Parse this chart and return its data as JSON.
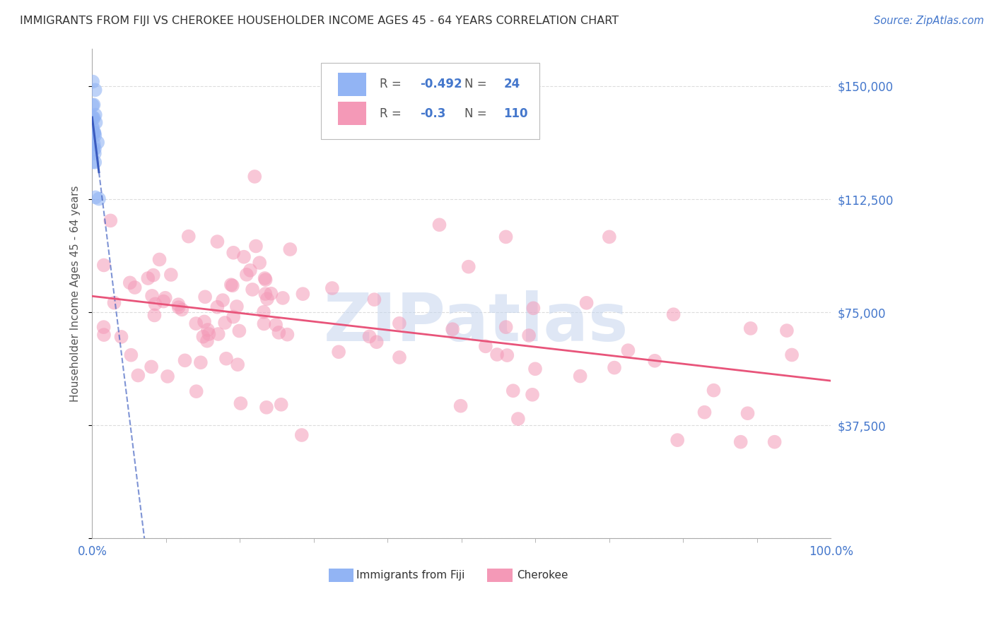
{
  "title": "IMMIGRANTS FROM FIJI VS CHEROKEE HOUSEHOLDER INCOME AGES 45 - 64 YEARS CORRELATION CHART",
  "source": "Source: ZipAtlas.com",
  "ylabel": "Householder Income Ages 45 - 64 years",
  "xlim": [
    0.0,
    1.0
  ],
  "ylim": [
    0,
    162500
  ],
  "yticks": [
    0,
    37500,
    75000,
    112500,
    150000
  ],
  "ytick_labels": [
    "",
    "$37,500",
    "$75,000",
    "$112,500",
    "$150,000"
  ],
  "fiji_R": -0.492,
  "fiji_N": 24,
  "cherokee_R": -0.3,
  "cherokee_N": 110,
  "fiji_color": "#92b4f4",
  "cherokee_color": "#f499b7",
  "fiji_line_color": "#3a5bbf",
  "cherokee_line_color": "#e8547a",
  "fiji_scatter_seed": 10,
  "cherokee_scatter_seed": 20,
  "watermark_text": "ZIPatlas",
  "watermark_color": "#c5d5ee",
  "background_color": "#ffffff",
  "grid_color": "#dddddd",
  "title_color": "#333333",
  "axis_label_color": "#555555",
  "ytick_color": "#4477cc",
  "xtick_label_color": "#4477cc",
  "source_color": "#4477cc",
  "legend_r_color": "#555555",
  "legend_val_color": "#4477cc",
  "legend_box_color": "#cccccc"
}
